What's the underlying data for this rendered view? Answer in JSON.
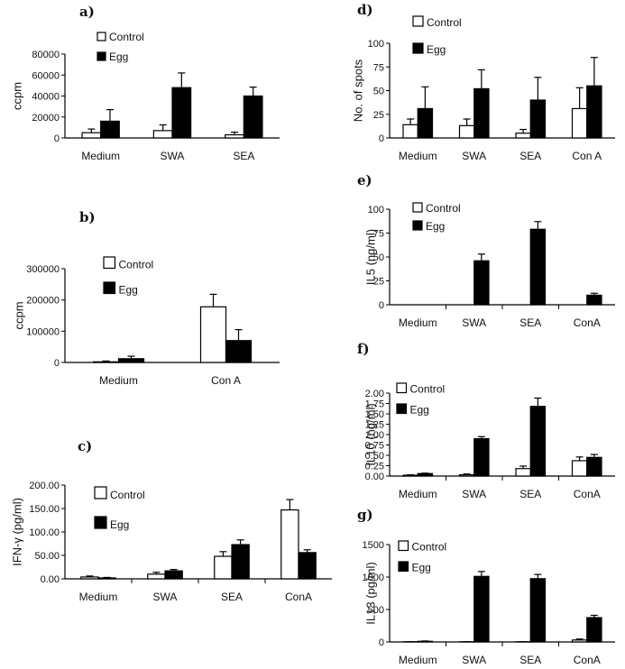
{
  "chart_data": [
    {
      "id": "a",
      "panel_label": "a)",
      "type": "bar",
      "ylabel": "ccpm",
      "categories": [
        "Medium",
        "SWA",
        "SEA"
      ],
      "ylim": [
        0,
        80000
      ],
      "yticks": [
        0,
        20000,
        40000,
        60000,
        80000
      ],
      "ytick_labels": [
        "0",
        "20000",
        "40000",
        "60000",
        "80000"
      ],
      "series": [
        {
          "name": "Control",
          "color": "#ffffff",
          "values": [
            5000,
            7000,
            3000
          ],
          "errors": [
            3500,
            5500,
            2500
          ]
        },
        {
          "name": "Egg",
          "color": "#000000",
          "values": [
            16000,
            48000,
            40000
          ],
          "errors": [
            11000,
            14000,
            8500
          ]
        }
      ],
      "legend_position": "top-left",
      "axis_style": "plain"
    },
    {
      "id": "b",
      "panel_label": "b)",
      "type": "bar",
      "ylabel": "ccpm",
      "categories": [
        "Medium",
        "Con A"
      ],
      "ylim": [
        0,
        300000
      ],
      "yticks": [
        0,
        100000,
        200000,
        300000
      ],
      "ytick_labels": [
        "0",
        "100000",
        "200000",
        "300000"
      ],
      "series": [
        {
          "name": "Control",
          "color": "#ffffff",
          "values": [
            2000,
            178000
          ],
          "errors": [
            2500,
            40000
          ]
        },
        {
          "name": "Egg",
          "color": "#000000",
          "values": [
            12000,
            70000
          ],
          "errors": [
            8000,
            35000
          ]
        }
      ],
      "legend_position": "top-left",
      "axis_style": "plain"
    },
    {
      "id": "c",
      "panel_label": "c)",
      "type": "bar",
      "ylabel": "IFN-γ (pg/ml)",
      "categories": [
        "Medium",
        "SWA",
        "SEA",
        "ConA"
      ],
      "ylim": [
        0,
        200
      ],
      "yticks": [
        0,
        50,
        100,
        150,
        200
      ],
      "ytick_labels": [
        "0.00",
        "50.00",
        "100.00",
        "150.00",
        "200.00"
      ],
      "series": [
        {
          "name": "Control",
          "color": "#ffffff",
          "values": [
            4,
            10,
            48,
            147
          ],
          "errors": [
            2,
            4,
            10,
            22
          ]
        },
        {
          "name": "Egg",
          "color": "#000000",
          "values": [
            2,
            17,
            73,
            56
          ],
          "errors": [
            1,
            3,
            10,
            6
          ]
        }
      ],
      "legend_position": "top-left",
      "axis_style": "separated"
    },
    {
      "id": "d",
      "panel_label": "d)",
      "type": "bar",
      "ylabel": "No. of spots",
      "categories": [
        "Medium",
        "SWA",
        "SEA",
        "Con A"
      ],
      "ylim": [
        0,
        100
      ],
      "yticks": [
        0,
        25,
        50,
        75,
        100
      ],
      "ytick_labels": [
        "0",
        "25",
        "50",
        "75",
        "100"
      ],
      "series": [
        {
          "name": "Control",
          "color": "#ffffff",
          "values": [
            14,
            13,
            5,
            31
          ],
          "errors": [
            6,
            7,
            4,
            22
          ]
        },
        {
          "name": "Egg",
          "color": "#000000",
          "values": [
            31,
            52,
            40,
            55
          ],
          "errors": [
            23,
            20,
            24,
            30
          ]
        }
      ],
      "legend_position": "top-left",
      "axis_style": "plain"
    },
    {
      "id": "e",
      "panel_label": "e)",
      "type": "bar",
      "ylabel": "IL5 (ng/ml)",
      "categories": [
        "Medium",
        "SWA",
        "SEA",
        "ConA"
      ],
      "ylim": [
        0,
        100
      ],
      "yticks": [
        0,
        25,
        50,
        75,
        100
      ],
      "ytick_labels": [
        "0",
        "25",
        "50",
        "75",
        "100"
      ],
      "series": [
        {
          "name": "Control",
          "color": "#ffffff",
          "values": [
            0,
            0,
            0,
            0
          ],
          "errors": [
            0,
            0,
            0,
            0
          ]
        },
        {
          "name": "Egg",
          "color": "#000000",
          "values": [
            0,
            46,
            79,
            10
          ],
          "errors": [
            0,
            7,
            8,
            2
          ]
        }
      ],
      "legend_position": "top-left",
      "axis_style": "separated"
    },
    {
      "id": "f",
      "panel_label": "f)",
      "type": "bar",
      "ylabel": "IL10 (ng/ml)",
      "categories": [
        "Medium",
        "SWA",
        "SEA",
        "ConA"
      ],
      "ylim": [
        0,
        2
      ],
      "yticks": [
        0,
        0.25,
        0.5,
        0.75,
        1,
        1.25,
        1.5,
        1.75,
        2
      ],
      "ytick_labels": [
        "0.00",
        "0.25",
        "0.50",
        "0.75",
        "1.00",
        "1.25",
        "1.50",
        "1.75",
        "2.00"
      ],
      "series": [
        {
          "name": "Control",
          "color": "#ffffff",
          "values": [
            0.02,
            0.03,
            0.18,
            0.37
          ],
          "errors": [
            0.01,
            0.02,
            0.06,
            0.09
          ]
        },
        {
          "name": "Egg",
          "color": "#000000",
          "values": [
            0.06,
            0.9,
            1.68,
            0.45
          ],
          "errors": [
            0.01,
            0.05,
            0.2,
            0.07
          ]
        }
      ],
      "legend_position": "top-left",
      "axis_style": "separated"
    },
    {
      "id": "g",
      "panel_label": "g)",
      "type": "bar",
      "ylabel": "IL13 (pg/ml)",
      "categories": [
        "Medium",
        "SWA",
        "SEA",
        "ConA"
      ],
      "ylim": [
        0,
        1500
      ],
      "yticks": [
        0,
        500,
        1000,
        1500
      ],
      "ytick_labels": [
        "0",
        "500",
        "1000",
        "1500"
      ],
      "series": [
        {
          "name": "Control",
          "color": "#ffffff",
          "values": [
            3,
            3,
            3,
            30
          ],
          "errors": [
            2,
            2,
            2,
            15
          ]
        },
        {
          "name": "Egg",
          "color": "#000000",
          "values": [
            10,
            1010,
            975,
            375
          ],
          "errors": [
            5,
            75,
            65,
            35
          ]
        }
      ],
      "legend_position": "top-left",
      "axis_style": "separated"
    }
  ]
}
